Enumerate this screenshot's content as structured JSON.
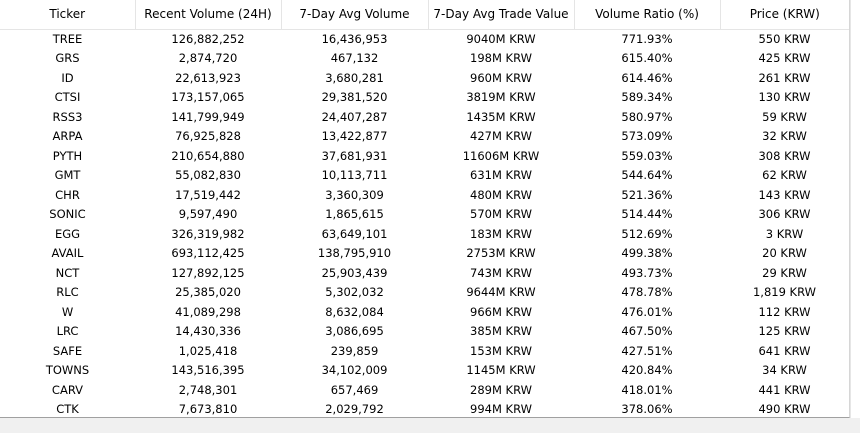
{
  "table": {
    "columns": [
      "Ticker",
      "Recent Volume (24H)",
      "7-Day Avg Volume",
      "7-Day Avg Trade Value",
      "Volume Ratio (%)",
      "Price (KRW)"
    ],
    "rows": [
      [
        "TREE",
        "126,882,252",
        "16,436,953",
        "9040M KRW",
        "771.93%",
        "550 KRW"
      ],
      [
        "GRS",
        "2,874,720",
        "467,132",
        "198M KRW",
        "615.40%",
        "425 KRW"
      ],
      [
        "ID",
        "22,613,923",
        "3,680,281",
        "960M KRW",
        "614.46%",
        "261 KRW"
      ],
      [
        "CTSI",
        "173,157,065",
        "29,381,520",
        "3819M KRW",
        "589.34%",
        "130 KRW"
      ],
      [
        "RSS3",
        "141,799,949",
        "24,407,287",
        "1435M KRW",
        "580.97%",
        "59 KRW"
      ],
      [
        "ARPA",
        "76,925,828",
        "13,422,877",
        "427M KRW",
        "573.09%",
        "32 KRW"
      ],
      [
        "PYTH",
        "210,654,880",
        "37,681,931",
        "11606M KRW",
        "559.03%",
        "308 KRW"
      ],
      [
        "GMT",
        "55,082,830",
        "10,113,711",
        "631M KRW",
        "544.64%",
        "62 KRW"
      ],
      [
        "CHR",
        "17,519,442",
        "3,360,309",
        "480M KRW",
        "521.36%",
        "143 KRW"
      ],
      [
        "SONIC",
        "9,597,490",
        "1,865,615",
        "570M KRW",
        "514.44%",
        "306 KRW"
      ],
      [
        "EGG",
        "326,319,982",
        "63,649,101",
        "183M KRW",
        "512.69%",
        "3 KRW"
      ],
      [
        "AVAIL",
        "693,112,425",
        "138,795,910",
        "2753M KRW",
        "499.38%",
        "20 KRW"
      ],
      [
        "NCT",
        "127,892,125",
        "25,903,439",
        "743M KRW",
        "493.73%",
        "29 KRW"
      ],
      [
        "RLC",
        "25,385,020",
        "5,302,032",
        "9644M KRW",
        "478.78%",
        "1,819 KRW"
      ],
      [
        "W",
        "41,089,298",
        "8,632,084",
        "966M KRW",
        "476.01%",
        "112 KRW"
      ],
      [
        "LRC",
        "14,430,336",
        "3,086,695",
        "385M KRW",
        "467.50%",
        "125 KRW"
      ],
      [
        "SAFE",
        "1,025,418",
        "239,859",
        "153M KRW",
        "427.51%",
        "641 KRW"
      ],
      [
        "TOWNS",
        "143,516,395",
        "34,102,009",
        "1145M KRW",
        "420.84%",
        "34 KRW"
      ],
      [
        "CARV",
        "2,748,301",
        "657,469",
        "289M KRW",
        "418.01%",
        "441 KRW"
      ],
      [
        "CTK",
        "7,673,810",
        "2,029,792",
        "994M KRW",
        "378.06%",
        "490 KRW"
      ]
    ]
  },
  "colors": {
    "background": "#ffffff",
    "chrome": "#f0f0f0",
    "grid_line": "#e5e5e5"
  }
}
